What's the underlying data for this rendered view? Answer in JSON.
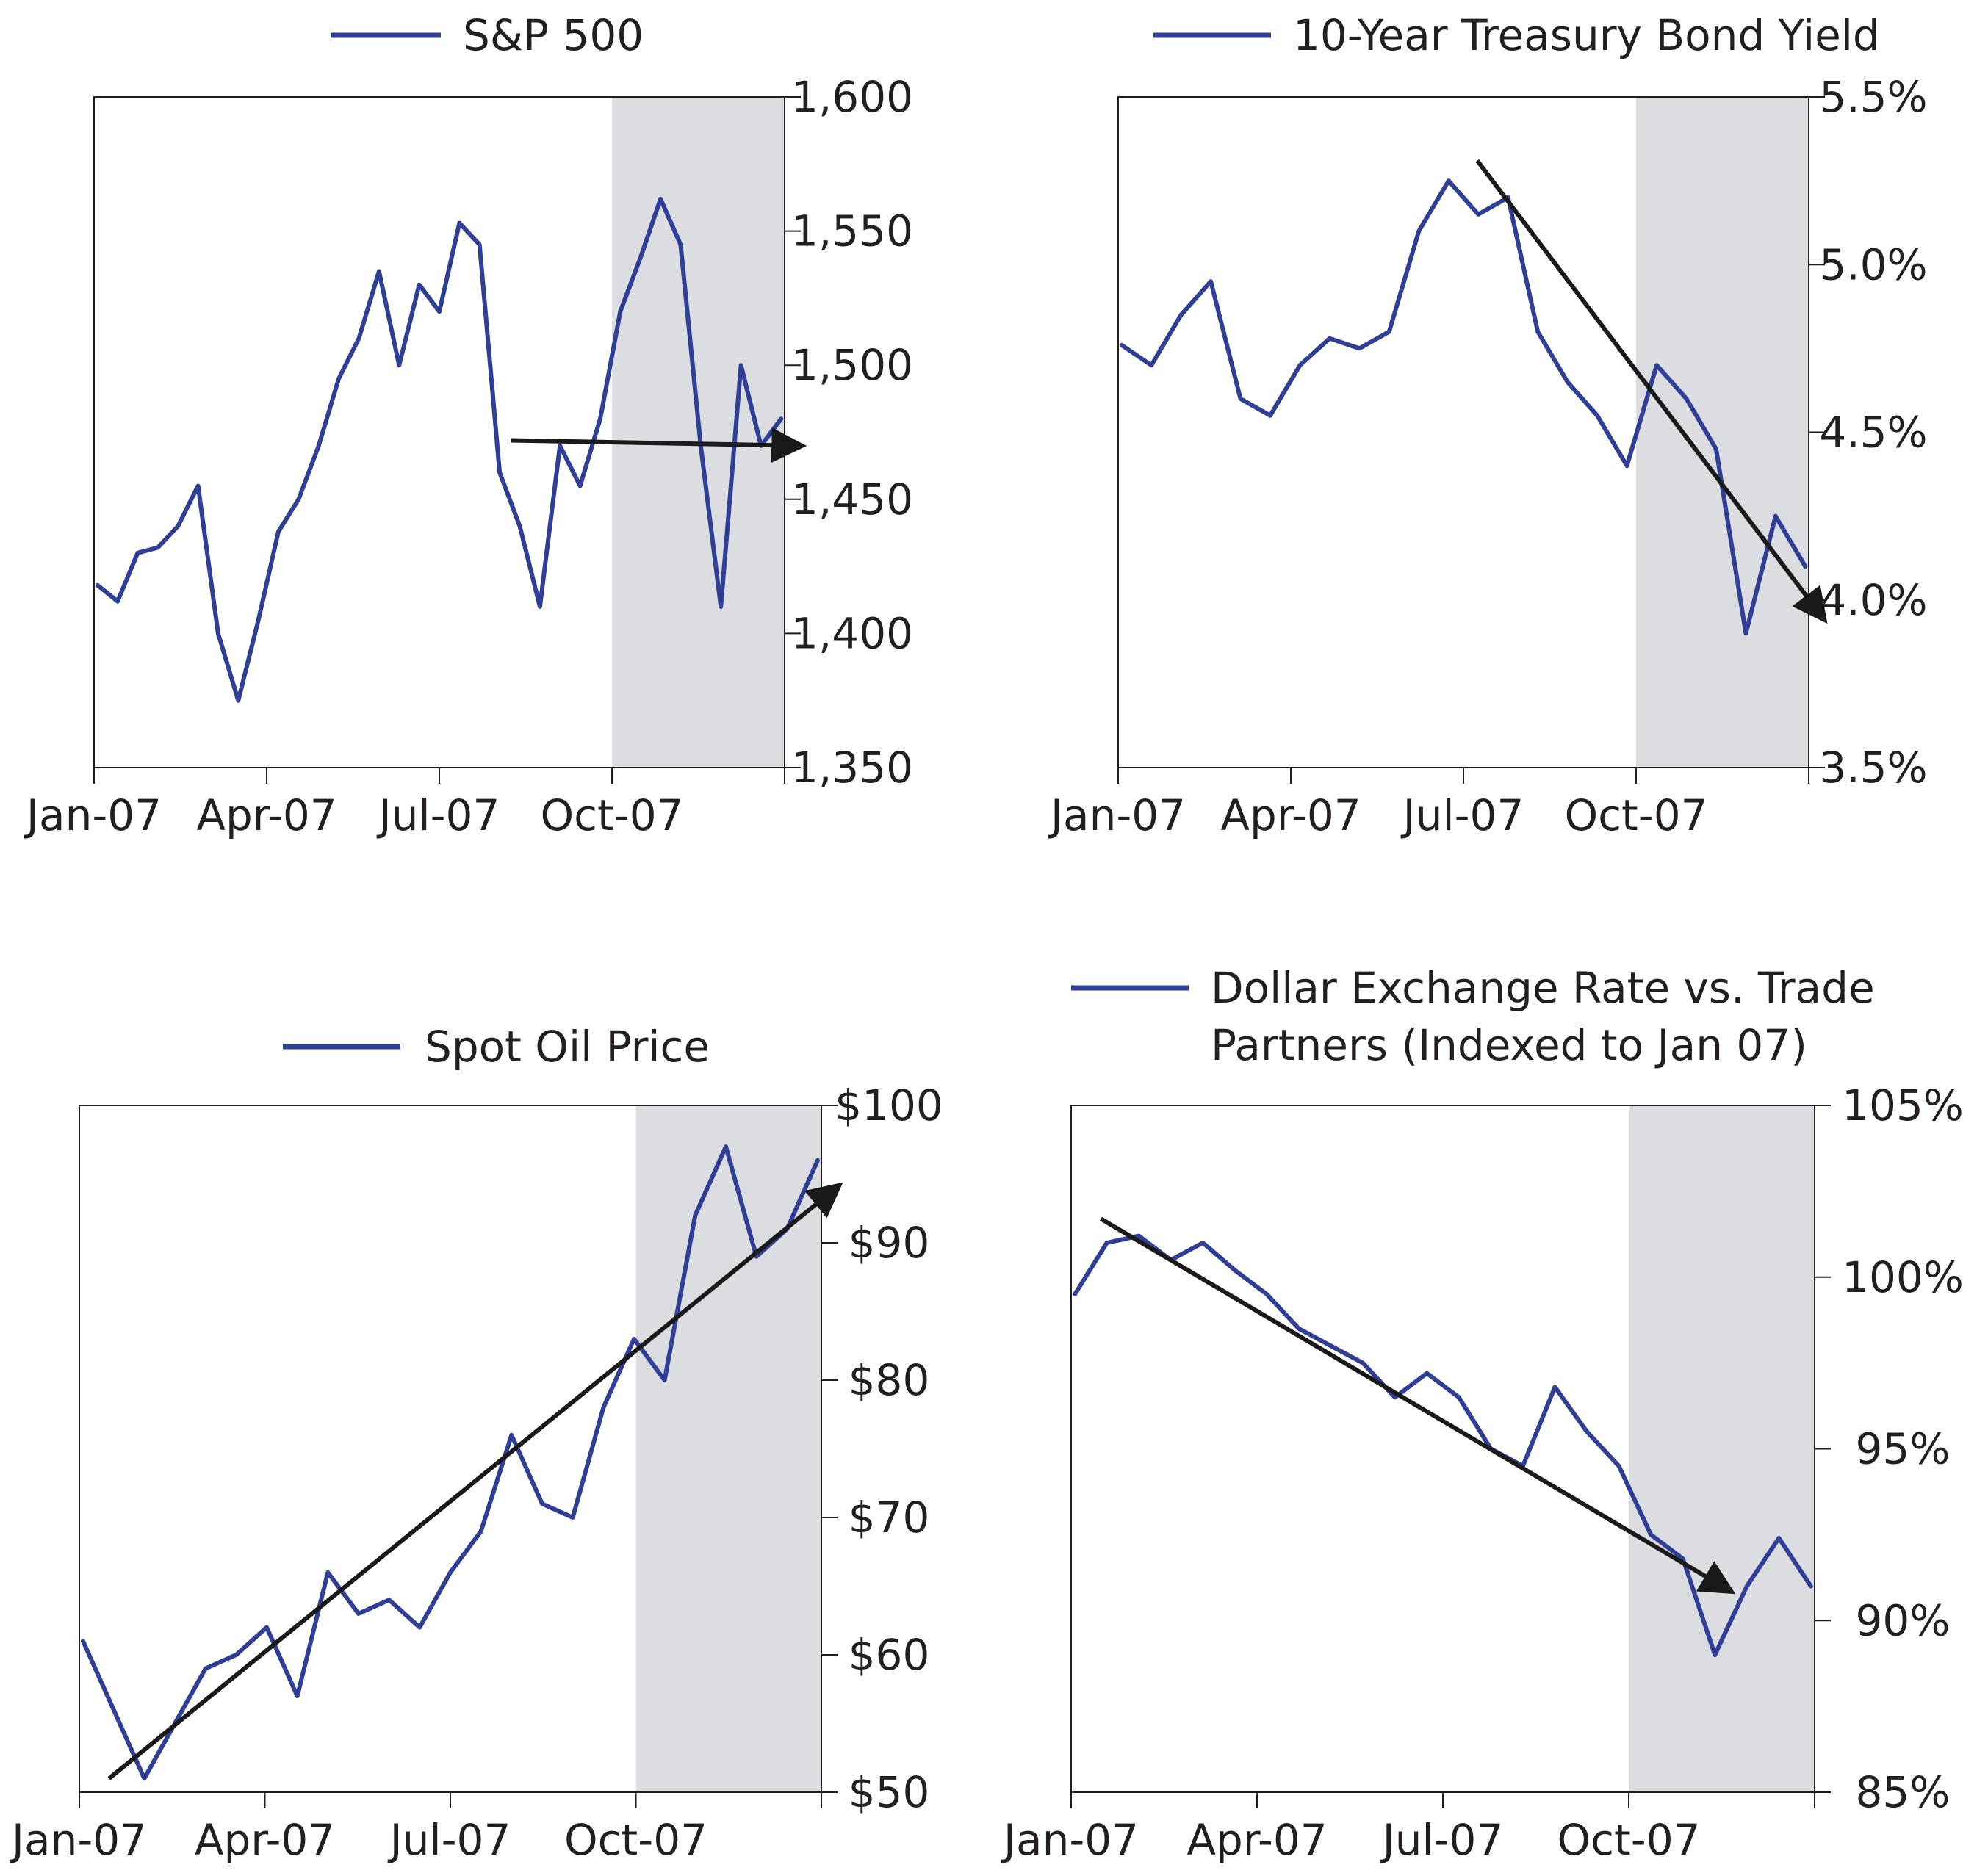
{
  "colors": {
    "series": "#2f3f98",
    "shade": "#dcdde0",
    "axis": "#231f20",
    "arrow": "#1a1a1a"
  },
  "chart_data": [
    {
      "id": "sp500",
      "type": "line",
      "legend": "S&P 500",
      "x_ticks": [
        "Jan-07",
        "Apr-07",
        "Jul-07",
        "Oct-07"
      ],
      "y_ticks": [
        "1,350",
        "1,400",
        "1,450",
        "1,500",
        "1,550",
        "1,600"
      ],
      "ylim": [
        1350,
        1600
      ],
      "shaded_period": [
        "Oct-07",
        "Dec-07"
      ],
      "trend_arrow": {
        "from": [
          "Aug-07",
          1472
        ],
        "to": [
          "Dec-07",
          1470
        ]
      },
      "series": [
        {
          "name": "S&P 500",
          "x": [
            "Jan-07",
            "Jan-07",
            "Feb-07",
            "Feb-07",
            "Feb-07",
            "Feb-07",
            "Mar-07",
            "Mar-07",
            "Mar-07",
            "Apr-07",
            "Apr-07",
            "Apr-07",
            "May-07",
            "May-07",
            "Jun-07",
            "Jun-07",
            "Jun-07",
            "Jul-07",
            "Jul-07",
            "Jul-07",
            "Aug-07",
            "Aug-07",
            "Aug-07",
            "Sep-07",
            "Sep-07",
            "Sep-07",
            "Oct-07",
            "Oct-07",
            "Oct-07",
            "Nov-07",
            "Nov-07",
            "Nov-07",
            "Dec-07",
            "Dec-07",
            "Dec-07"
          ],
          "values": [
            1418,
            1412,
            1430,
            1432,
            1440,
            1455,
            1400,
            1375,
            1405,
            1438,
            1450,
            1470,
            1495,
            1510,
            1535,
            1500,
            1530,
            1520,
            1553,
            1545,
            1460,
            1440,
            1410,
            1470,
            1455,
            1480,
            1520,
            1540,
            1562,
            1545,
            1470,
            1410,
            1500,
            1470,
            1480
          ]
        }
      ]
    },
    {
      "id": "treasury",
      "type": "line",
      "legend": "10-Year Treasury Bond Yield",
      "x_ticks": [
        "Jan-07",
        "Apr-07",
        "Jul-07",
        "Oct-07"
      ],
      "y_ticks": [
        "3.5%",
        "4.0%",
        "4.5%",
        "5.0%",
        "5.5%"
      ],
      "ylim": [
        3.5,
        5.5
      ],
      "shaded_period": [
        "Oct-07",
        "Dec-07"
      ],
      "trend_arrow": {
        "from": [
          "Jul-07",
          5.31
        ],
        "to": [
          "Dec-07",
          3.95
        ]
      },
      "series": [
        {
          "name": "10-Year Treasury Bond Yield",
          "x": [
            "Jan-07",
            "Jan-07",
            "Feb-07",
            "Feb-07",
            "Mar-07",
            "Mar-07",
            "Apr-07",
            "Apr-07",
            "May-07",
            "May-07",
            "Jun-07",
            "Jun-07",
            "Jul-07",
            "Jul-07",
            "Aug-07",
            "Aug-07",
            "Sep-07",
            "Sep-07",
            "Oct-07",
            "Oct-07",
            "Nov-07",
            "Nov-07",
            "Dec-07",
            "Dec-07"
          ],
          "values": [
            4.76,
            4.7,
            4.85,
            4.95,
            4.6,
            4.55,
            4.7,
            4.78,
            4.75,
            4.8,
            5.1,
            5.25,
            5.15,
            5.2,
            4.8,
            4.65,
            4.55,
            4.4,
            4.7,
            4.6,
            4.45,
            3.9,
            4.25,
            4.1
          ]
        }
      ]
    },
    {
      "id": "oil",
      "type": "line",
      "legend": "Spot Oil Price",
      "x_ticks": [
        "Jan-07",
        "Apr-07",
        "Jul-07",
        "Oct-07"
      ],
      "y_ticks": [
        "$50",
        "$60",
        "$70",
        "$80",
        "$90",
        "$100"
      ],
      "ylim": [
        50,
        100
      ],
      "shaded_period": [
        "Oct-07",
        "Dec-07"
      ],
      "trend_arrow": {
        "from": [
          "Jan-07",
          51
        ],
        "to": [
          "Dec-07",
          94
        ]
      },
      "series": [
        {
          "name": "Spot Oil Price",
          "x": [
            "Jan-07",
            "Jan-07",
            "Jan-07",
            "Feb-07",
            "Feb-07",
            "Mar-07",
            "Mar-07",
            "Apr-07",
            "Apr-07",
            "May-07",
            "May-07",
            "Jun-07",
            "Jun-07",
            "Jul-07",
            "Jul-07",
            "Aug-07",
            "Aug-07",
            "Sep-07",
            "Sep-07",
            "Oct-07",
            "Oct-07",
            "Nov-07",
            "Nov-07",
            "Dec-07",
            "Dec-07"
          ],
          "values": [
            61,
            56,
            51,
            55,
            59,
            60,
            62,
            57,
            66,
            63,
            64,
            62,
            66,
            69,
            76,
            71,
            70,
            78,
            83,
            80,
            92,
            97,
            89,
            91,
            96
          ]
        }
      ]
    },
    {
      "id": "dollar",
      "type": "line",
      "legend": "Dollar Exchange Rate vs. Trade Partners (Indexed to Jan 07)",
      "x_ticks": [
        "Jan-07",
        "Apr-07",
        "Jul-07",
        "Oct-07"
      ],
      "y_ticks": [
        "85%",
        "90%",
        "95%",
        "100%",
        "105%"
      ],
      "ylim": [
        85,
        105
      ],
      "shaded_period": [
        "Oct-07",
        "Dec-07"
      ],
      "trend_arrow": {
        "from": [
          "Jan-07",
          101.7
        ],
        "to": [
          "Nov-07",
          90.9
        ]
      },
      "series": [
        {
          "name": "Dollar Exchange Rate vs. Trade Partners",
          "x": [
            "Jan-07",
            "Jan-07",
            "Feb-07",
            "Feb-07",
            "Mar-07",
            "Mar-07",
            "Apr-07",
            "Apr-07",
            "May-07",
            "May-07",
            "Jun-07",
            "Jun-07",
            "Jul-07",
            "Jul-07",
            "Aug-07",
            "Aug-07",
            "Sep-07",
            "Sep-07",
            "Oct-07",
            "Oct-07",
            "Nov-07",
            "Nov-07",
            "Dec-07",
            "Dec-07"
          ],
          "values": [
            99.5,
            101,
            101.2,
            100.5,
            101,
            100.2,
            99.5,
            98.5,
            98,
            97.5,
            96.5,
            97.2,
            96.5,
            95,
            94.5,
            96.8,
            95.5,
            94.5,
            92.5,
            91.8,
            89.0,
            91.0,
            92.4,
            91.0
          ]
        }
      ]
    }
  ]
}
